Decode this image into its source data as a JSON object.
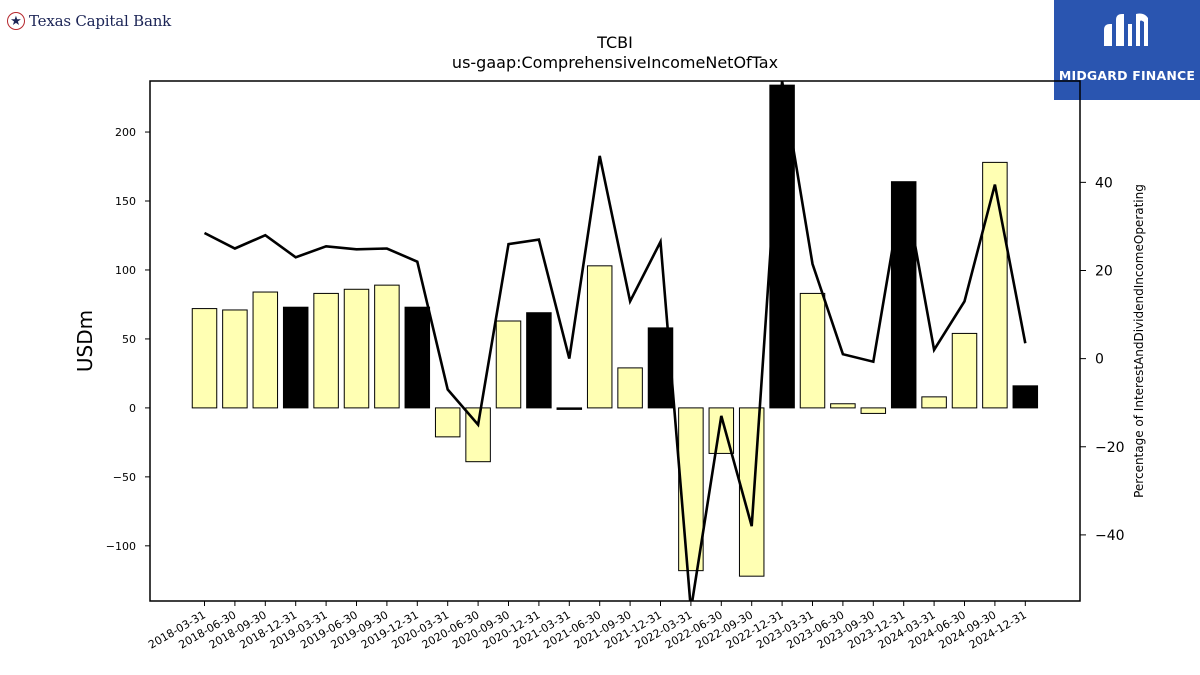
{
  "brand": {
    "left_name": "Texas Capital Bank",
    "left_icon": "star-icon",
    "right_name": "MIDGARD FINANCE",
    "right_icon": "midgard-logo-icon",
    "right_bg": "#2a55b0"
  },
  "chart_data": {
    "type": "bar",
    "title": "TCBI",
    "subtitle": "us-gaap:ComprehensiveIncomeNetOfTax",
    "ylabel": "USDm",
    "y2label": "Percentage of InterestAndDividendIncomeOperating",
    "ylim": [
      -140,
      237
    ],
    "y2lim": [
      -55,
      63
    ],
    "yticks": [
      -100,
      -50,
      0,
      50,
      100,
      150,
      200
    ],
    "y2ticks": [
      -40,
      -20,
      0,
      20,
      40
    ],
    "ytick_labels": [
      "−100",
      "−50",
      "0",
      "50",
      "100",
      "150",
      "200"
    ],
    "y2tick_labels": [
      "−40",
      "−20",
      "0",
      "20",
      "40"
    ],
    "categories": [
      "2018-03-31",
      "2018-06-30",
      "2018-09-30",
      "2018-12-31",
      "2019-03-31",
      "2019-06-30",
      "2019-09-30",
      "2019-12-31",
      "2020-03-31",
      "2020-06-30",
      "2020-09-30",
      "2020-12-31",
      "2021-03-31",
      "2021-06-30",
      "2021-09-30",
      "2021-12-31",
      "2022-03-31",
      "2022-06-30",
      "2022-09-30",
      "2022-12-31",
      "2023-03-31",
      "2023-06-30",
      "2023-09-30",
      "2023-12-31",
      "2024-03-31",
      "2024-06-30",
      "2024-09-30",
      "2024-12-31"
    ],
    "bars": {
      "values": [
        72,
        71,
        84,
        73,
        83,
        86,
        89,
        73,
        -21,
        -39,
        63,
        69,
        -1,
        103,
        29,
        58,
        -118,
        -33,
        -122,
        234,
        83,
        3,
        -4,
        164,
        8,
        54,
        178,
        16
      ],
      "highlight": [
        false,
        false,
        false,
        true,
        false,
        false,
        false,
        true,
        false,
        false,
        false,
        true,
        true,
        false,
        false,
        true,
        false,
        false,
        false,
        true,
        false,
        false,
        false,
        true,
        false,
        false,
        false,
        true
      ],
      "color_normal": "#ffffb3",
      "color_highlight": "#000000",
      "edge_color": "#000000"
    },
    "line": {
      "values": [
        28.5,
        25,
        28,
        23,
        25.5,
        24.8,
        25,
        22,
        -7,
        -15,
        26,
        27,
        0,
        46,
        13,
        26.5,
        -57,
        -13,
        -38,
        63,
        21.5,
        1,
        -0.7,
        40,
        2,
        13,
        39.5,
        3.5
      ],
      "color": "#000000"
    },
    "grid": false,
    "legend": "none"
  }
}
